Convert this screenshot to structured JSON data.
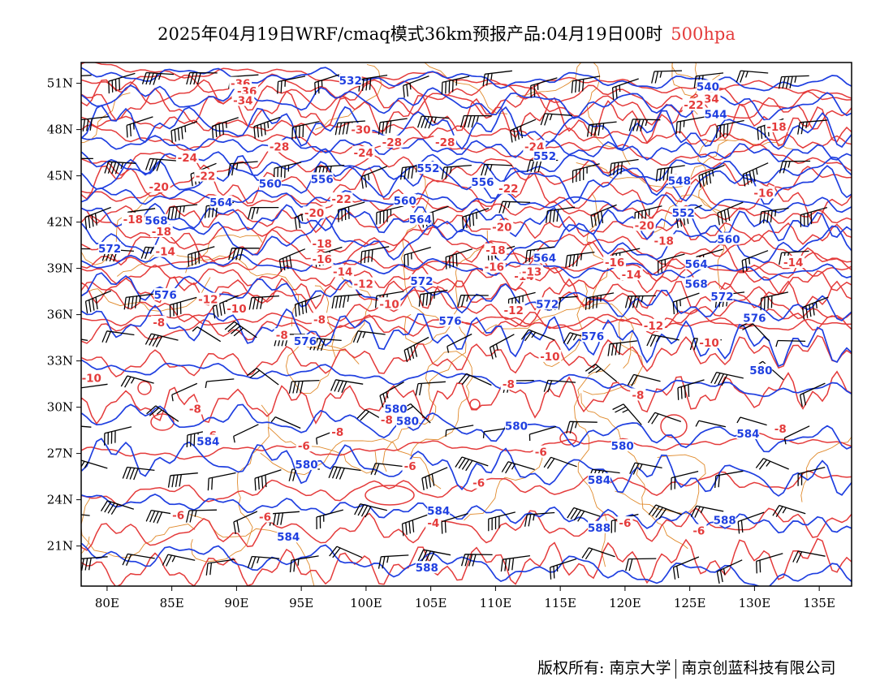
{
  "title": {
    "main": "2025年04月19日WRF/cmaq模式36km预报产品:04月19日00时",
    "level": "500hpa",
    "level_color": "#e43b3b"
  },
  "colors": {
    "height_contours": "#1f3fe0",
    "temperature_contours": "#e43b3b",
    "borders": "#e08a2c",
    "wind_barbs": "#000000"
  },
  "axes": {
    "lon_labels": [
      "80E",
      "85E",
      "90E",
      "95E",
      "100E",
      "105E",
      "110E",
      "115E",
      "120E",
      "125E",
      "130E",
      "135E"
    ],
    "lat_labels": [
      "51N",
      "48N",
      "45N",
      "42N",
      "39N",
      "36N",
      "33N",
      "30N",
      "27N",
      "24N",
      "21N"
    ]
  },
  "height_labels": [
    {
      "text": "532",
      "lon": 98.8,
      "lat": 51.2
    },
    {
      "text": "540",
      "lon": 126.4,
      "lat": 50.8
    },
    {
      "text": "544",
      "lon": 127.0,
      "lat": 49.0
    },
    {
      "text": "548",
      "lon": 124.2,
      "lat": 44.7
    },
    {
      "text": "552",
      "lon": 104.8,
      "lat": 45.5
    },
    {
      "text": "552",
      "lon": 113.8,
      "lat": 46.3
    },
    {
      "text": "552",
      "lon": 124.5,
      "lat": 42.6
    },
    {
      "text": "556",
      "lon": 96.6,
      "lat": 44.8
    },
    {
      "text": "556",
      "lon": 109.0,
      "lat": 44.6
    },
    {
      "text": "560",
      "lon": 92.6,
      "lat": 44.5
    },
    {
      "text": "560",
      "lon": 103.0,
      "lat": 43.4
    },
    {
      "text": "560",
      "lon": 128.0,
      "lat": 40.9
    },
    {
      "text": "564",
      "lon": 88.8,
      "lat": 43.3
    },
    {
      "text": "564",
      "lon": 104.2,
      "lat": 42.2
    },
    {
      "text": "564",
      "lon": 113.8,
      "lat": 39.7
    },
    {
      "text": "564",
      "lon": 125.5,
      "lat": 39.3
    },
    {
      "text": "568",
      "lon": 83.8,
      "lat": 42.1
    },
    {
      "text": "568",
      "lon": 125.5,
      "lat": 38.0
    },
    {
      "text": "572",
      "lon": 80.2,
      "lat": 40.3
    },
    {
      "text": "572",
      "lon": 104.3,
      "lat": 38.2
    },
    {
      "text": "572",
      "lon": 114.0,
      "lat": 36.7
    },
    {
      "text": "572",
      "lon": 127.5,
      "lat": 37.2
    },
    {
      "text": "576",
      "lon": 84.5,
      "lat": 37.3
    },
    {
      "text": "576",
      "lon": 95.3,
      "lat": 34.3
    },
    {
      "text": "576",
      "lon": 106.5,
      "lat": 35.6
    },
    {
      "text": "576",
      "lon": 117.5,
      "lat": 34.6
    },
    {
      "text": "576",
      "lon": 130.0,
      "lat": 35.8
    },
    {
      "text": "580",
      "lon": 102.3,
      "lat": 29.9
    },
    {
      "text": "580",
      "lon": 103.2,
      "lat": 29.1
    },
    {
      "text": "580",
      "lon": 95.4,
      "lat": 26.3
    },
    {
      "text": "580",
      "lon": 111.6,
      "lat": 28.8
    },
    {
      "text": "580",
      "lon": 119.8,
      "lat": 27.5
    },
    {
      "text": "580",
      "lon": 130.5,
      "lat": 32.4
    },
    {
      "text": "584",
      "lon": 87.8,
      "lat": 27.8
    },
    {
      "text": "584",
      "lon": 105.6,
      "lat": 23.3
    },
    {
      "text": "584",
      "lon": 94.0,
      "lat": 21.6
    },
    {
      "text": "584",
      "lon": 118.0,
      "lat": 25.3
    },
    {
      "text": "584",
      "lon": 129.5,
      "lat": 28.3
    },
    {
      "text": "588",
      "lon": 104.7,
      "lat": 19.6
    },
    {
      "text": "588",
      "lon": 118.0,
      "lat": 22.2
    },
    {
      "text": "588",
      "lon": 127.7,
      "lat": 22.7
    }
  ],
  "temperature_labels": [
    {
      "text": "-36",
      "lon": 90.3,
      "lat": 51.0
    },
    {
      "text": "-36",
      "lon": 90.8,
      "lat": 50.5
    },
    {
      "text": "-34",
      "lon": 90.5,
      "lat": 49.9
    },
    {
      "text": "-34",
      "lon": 126.5,
      "lat": 50.0
    },
    {
      "text": "-22",
      "lon": 125.3,
      "lat": 49.6
    },
    {
      "text": "-30",
      "lon": 99.6,
      "lat": 48.0
    },
    {
      "text": "-28",
      "lon": 102.0,
      "lat": 47.2
    },
    {
      "text": "-28",
      "lon": 106.1,
      "lat": 47.2
    },
    {
      "text": "-28",
      "lon": 93.3,
      "lat": 46.9
    },
    {
      "text": "-24",
      "lon": 113.0,
      "lat": 46.9
    },
    {
      "text": "-24",
      "lon": 86.2,
      "lat": 46.2
    },
    {
      "text": "-24",
      "lon": 99.8,
      "lat": 46.5
    },
    {
      "text": "-18",
      "lon": 131.7,
      "lat": 48.2
    },
    {
      "text": "-22",
      "lon": 87.6,
      "lat": 45.0
    },
    {
      "text": "-22",
      "lon": 111.0,
      "lat": 44.2
    },
    {
      "text": "-22",
      "lon": 98.1,
      "lat": 43.5
    },
    {
      "text": "-20",
      "lon": 84.0,
      "lat": 44.3
    },
    {
      "text": "-20",
      "lon": 96.0,
      "lat": 42.6
    },
    {
      "text": "-20",
      "lon": 110.5,
      "lat": 41.7
    },
    {
      "text": "-20",
      "lon": 121.5,
      "lat": 41.8
    },
    {
      "text": "-18",
      "lon": 82.0,
      "lat": 42.2
    },
    {
      "text": "-18",
      "lon": 84.2,
      "lat": 41.4
    },
    {
      "text": "-18",
      "lon": 96.6,
      "lat": 40.6
    },
    {
      "text": "-18",
      "lon": 110.0,
      "lat": 40.2
    },
    {
      "text": "-18",
      "lon": 123.0,
      "lat": 40.8
    },
    {
      "text": "-16",
      "lon": 130.7,
      "lat": 43.9
    },
    {
      "text": "-16",
      "lon": 96.6,
      "lat": 39.6
    },
    {
      "text": "-16",
      "lon": 109.9,
      "lat": 39.1
    },
    {
      "text": "-16",
      "lon": 119.2,
      "lat": 39.4
    },
    {
      "text": "-14",
      "lon": 84.5,
      "lat": 40.1
    },
    {
      "text": "-14",
      "lon": 98.2,
      "lat": 38.8
    },
    {
      "text": "-14",
      "lon": 112.2,
      "lat": 38.5
    },
    {
      "text": "-14",
      "lon": 120.5,
      "lat": 38.6
    },
    {
      "text": "-14",
      "lon": 133.0,
      "lat": 39.4
    },
    {
      "text": "-13",
      "lon": 112.8,
      "lat": 38.8
    },
    {
      "text": "-12",
      "lon": 87.8,
      "lat": 37.0
    },
    {
      "text": "-12",
      "lon": 99.8,
      "lat": 38.0
    },
    {
      "text": "-12",
      "lon": 111.4,
      "lat": 36.3
    },
    {
      "text": "-12",
      "lon": 122.2,
      "lat": 35.3
    },
    {
      "text": "-10",
      "lon": 90.0,
      "lat": 36.4
    },
    {
      "text": "-10",
      "lon": 101.8,
      "lat": 36.7
    },
    {
      "text": "-10",
      "lon": 114.2,
      "lat": 33.3
    },
    {
      "text": "-10",
      "lon": 126.5,
      "lat": 34.2
    },
    {
      "text": "-8",
      "lon": 84.0,
      "lat": 35.5
    },
    {
      "text": "-8",
      "lon": 96.4,
      "lat": 35.7
    },
    {
      "text": "-8",
      "lon": 93.5,
      "lat": 34.7
    },
    {
      "text": "-10",
      "lon": 78.8,
      "lat": 31.9
    },
    {
      "text": "-8",
      "lon": 111.0,
      "lat": 31.5
    },
    {
      "text": "-8",
      "lon": 86.8,
      "lat": 29.9
    },
    {
      "text": "-8",
      "lon": 97.8,
      "lat": 28.4
    },
    {
      "text": "-8",
      "lon": 101.6,
      "lat": 29.2
    },
    {
      "text": "-8",
      "lon": 121.0,
      "lat": 30.8
    },
    {
      "text": "-8",
      "lon": 132.0,
      "lat": 28.6
    },
    {
      "text": "-6",
      "lon": 88.0,
      "lat": 28.2
    },
    {
      "text": "-6",
      "lon": 95.2,
      "lat": 27.5
    },
    {
      "text": "-6",
      "lon": 103.4,
      "lat": 26.2
    },
    {
      "text": "-6",
      "lon": 113.5,
      "lat": 27.1
    },
    {
      "text": "-6",
      "lon": 108.7,
      "lat": 25.1
    },
    {
      "text": "-6",
      "lon": 120.0,
      "lat": 22.5
    },
    {
      "text": "-6",
      "lon": 125.7,
      "lat": 22.0
    },
    {
      "text": "-6",
      "lon": 85.5,
      "lat": 23.0
    },
    {
      "text": "-6",
      "lon": 92.2,
      "lat": 22.9
    },
    {
      "text": "-4",
      "lon": 105.2,
      "lat": 22.5
    }
  ],
  "footer": {
    "copyright": "版权所有: 南京大学",
    "company": "南京创蓝科技有限公司"
  }
}
